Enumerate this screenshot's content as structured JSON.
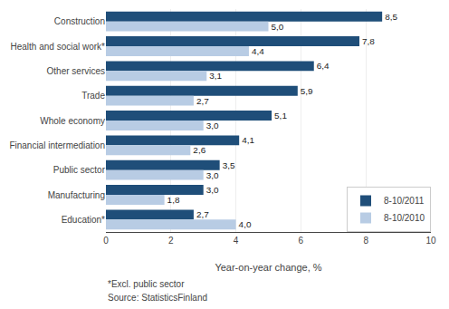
{
  "chart_data": {
    "type": "bar",
    "orientation": "horizontal",
    "categories": [
      "Construction",
      "Health and social work*",
      "Other services",
      "Trade",
      "Whole economy",
      "Financial intermediation",
      "Public sector",
      "Manufacturing",
      "Education*"
    ],
    "series": [
      {
        "name": "8-10/2011",
        "color": "#1F4E79",
        "values": [
          8.5,
          7.8,
          6.4,
          5.9,
          5.1,
          4.1,
          3.5,
          3.0,
          2.7
        ],
        "value_labels": [
          "8,5",
          "7,8",
          "6,4",
          "5,9",
          "5,1",
          "4,1",
          "3,5",
          "3,0",
          "2,7"
        ]
      },
      {
        "name": "8-10/2010",
        "color": "#B8CCE4",
        "values": [
          5.0,
          4.4,
          3.1,
          2.7,
          3.0,
          2.6,
          3.0,
          1.8,
          4.0
        ],
        "value_labels": [
          "5,0",
          "4,4",
          "3,1",
          "2,7",
          "3,0",
          "2,6",
          "3,0",
          "1,8",
          "4,0"
        ]
      }
    ],
    "xlabel": "Year-on-year change, %",
    "xlim": [
      0,
      10
    ],
    "xticks": [
      0,
      2,
      4,
      6,
      8,
      10
    ],
    "grid": true,
    "legend": "lower right",
    "data_labels": true,
    "annotations": [
      "*Excl. public sector",
      "Source: StatisticsFinland"
    ]
  }
}
